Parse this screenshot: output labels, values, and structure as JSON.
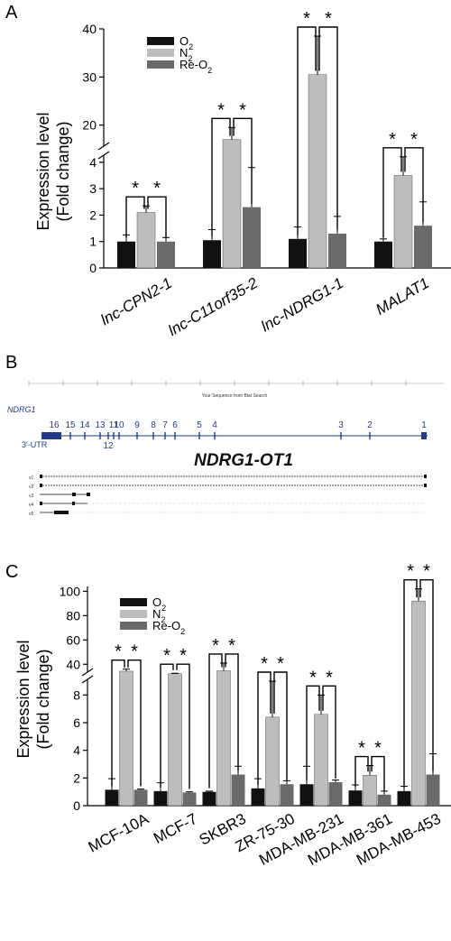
{
  "panel_labels": {
    "a": "A",
    "b": "B",
    "c": "C"
  },
  "colors": {
    "O2": "#111111",
    "N2": "#bdbdbd",
    "ReO2": "#6a6a6a",
    "gene_track": "#223a8a"
  },
  "legend": {
    "entries": [
      {
        "key": "O2",
        "base": "O",
        "sub": "2"
      },
      {
        "key": "N2",
        "base": "N",
        "sub": "2"
      },
      {
        "key": "ReO2",
        "base": "Re-O",
        "sub": "2"
      }
    ]
  },
  "panel_a": {
    "ylabel_line1": "Expression level",
    "ylabel_line2": "(Fold change)",
    "star": "*"
  },
  "panel_b": {
    "title": "NDRG1-OT1",
    "gene": "NDRG1",
    "utr": "3'-UTR",
    "ruler_caption": "Your Sequence from Blat Search",
    "exons_top": [
      "16",
      "15",
      "14",
      "13",
      "11",
      "10",
      "9",
      "8",
      "7",
      "6",
      "5",
      "4",
      "3",
      "2",
      "1"
    ],
    "exon_12": "12",
    "transcripts": [
      "v1",
      "v2",
      "v3",
      "v4",
      "v5"
    ]
  },
  "panel_c": {
    "ylabel_line1": "Expression level",
    "ylabel_line2": "(Fold change)",
    "star": "*"
  },
  "chart_data": [
    {
      "type": "bar",
      "panel": "A",
      "ylabel": "Expression level (Fold change)",
      "categories": [
        "lnc-CPN2-1",
        "lnc-C11orf35-2",
        "lnc-NDRG1-1",
        "MALAT1"
      ],
      "series": [
        {
          "name": "O2",
          "values": [
            1.0,
            1.05,
            1.1,
            1.0
          ],
          "errors": [
            0.25,
            0.4,
            0.45,
            0.1
          ]
        },
        {
          "name": "N2",
          "values": [
            2.1,
            17,
            30.5,
            3.5
          ],
          "errors": [
            0.25,
            2.5,
            8,
            0.9
          ]
        },
        {
          "name": "Re-O2",
          "values": [
            1.0,
            2.3,
            1.3,
            1.6
          ],
          "errors": [
            0.15,
            1.5,
            0.65,
            0.9
          ]
        }
      ],
      "y_axis_broken": true,
      "yticks_lower": [
        0,
        1,
        2,
        3,
        4
      ],
      "yticks_upper": [
        20,
        30,
        40
      ],
      "significance": "*"
    },
    {
      "type": "bar",
      "panel": "C",
      "ylabel": "Expression level (Fold change)",
      "categories": [
        "MCF-10A",
        "MCF-7",
        "SKBR3",
        "ZR-75-30",
        "MDA-MB-231",
        "MDA-MB-361",
        "MDA-MB-453"
      ],
      "series": [
        {
          "name": "O2",
          "values": [
            1.15,
            1.05,
            1.0,
            1.25,
            1.55,
            1.1,
            1.05
          ],
          "errors": [
            0.8,
            0.6,
            0.05,
            0.7,
            1.3,
            0.4,
            0.35
          ]
        },
        {
          "name": "N2",
          "values": [
            33,
            27,
            34,
            6.4,
            6.6,
            2.2,
            92
          ],
          "errors": [
            3,
            1,
            7,
            2.6,
            1.4,
            0.7,
            10
          ]
        },
        {
          "name": "Re-O2",
          "values": [
            1.15,
            0.95,
            2.25,
            1.55,
            1.7,
            0.8,
            2.25
          ],
          "errors": [
            0.05,
            0.05,
            0.6,
            0.25,
            0.15,
            0.25,
            1.5
          ]
        }
      ],
      "y_axis_broken": true,
      "yticks_lower": [
        0,
        2,
        4,
        6,
        8
      ],
      "yticks_upper": [
        40,
        60,
        80,
        100
      ],
      "significance": "*"
    }
  ]
}
